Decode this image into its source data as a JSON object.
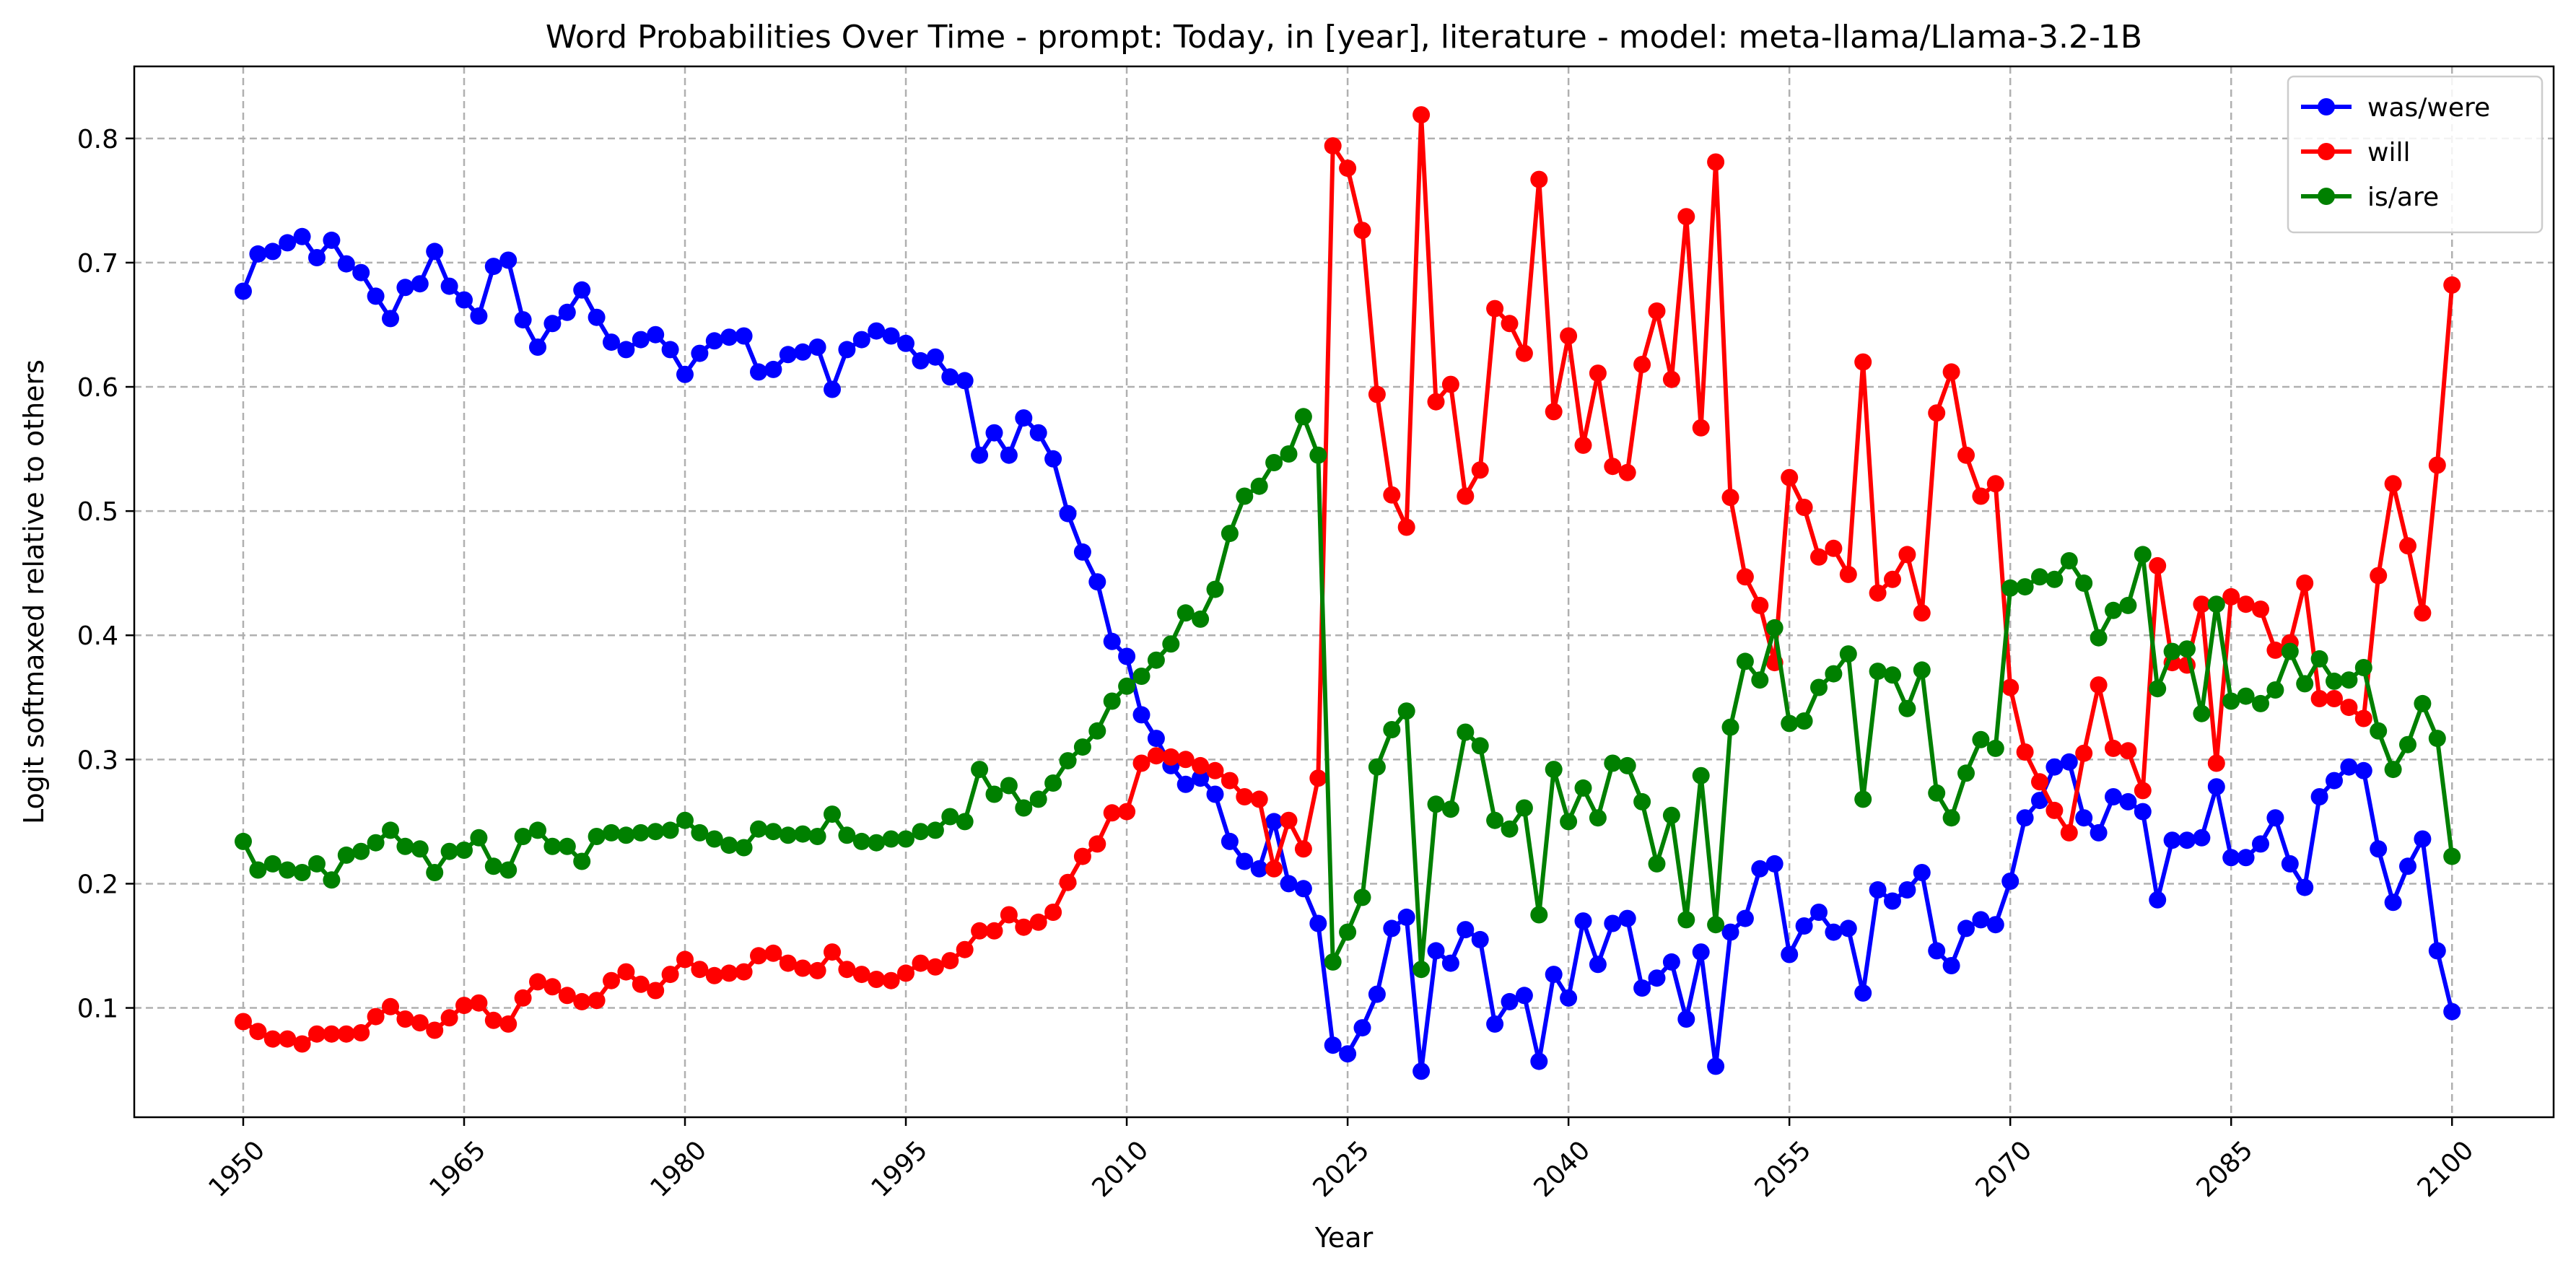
{
  "chart_data": {
    "type": "line",
    "title": "Word Probabilities Over Time - prompt: Today, in [year], literature - model: meta-llama/Llama-3.2-1B",
    "xlabel": "Year",
    "ylabel": "Logit softmaxed relative to others",
    "xlim": [
      1942.6,
      2106.9
    ],
    "ylim": [
      0.012,
      0.858
    ],
    "x_ticks": [
      1950,
      1965,
      1980,
      1995,
      2010,
      2025,
      2040,
      2055,
      2070,
      2085,
      2100
    ],
    "y_ticks": [
      0.1,
      0.2,
      0.3,
      0.4,
      0.5,
      0.6,
      0.7,
      0.8
    ],
    "grid": true,
    "legend_position": "top-right",
    "x_start": 1950,
    "x_step": 1,
    "series": [
      {
        "name": "was/were",
        "color": "#0000ff",
        "values": [
          0.677,
          0.707,
          0.709,
          0.716,
          0.721,
          0.704,
          0.718,
          0.699,
          0.692,
          0.673,
          0.655,
          0.68,
          0.683,
          0.709,
          0.681,
          0.67,
          0.657,
          0.697,
          0.702,
          0.654,
          0.632,
          0.651,
          0.66,
          0.678,
          0.656,
          0.636,
          0.63,
          0.638,
          0.642,
          0.63,
          0.61,
          0.627,
          0.637,
          0.64,
          0.641,
          0.612,
          0.614,
          0.626,
          0.628,
          0.632,
          0.598,
          0.63,
          0.638,
          0.645,
          0.641,
          0.635,
          0.621,
          0.624,
          0.608,
          0.605,
          0.545,
          0.563,
          0.545,
          0.575,
          0.563,
          0.542,
          0.498,
          0.467,
          0.443,
          0.395,
          0.383,
          0.336,
          0.317,
          0.295,
          0.28,
          0.285,
          0.272,
          0.234,
          0.218,
          0.212,
          0.25,
          0.2,
          0.196,
          0.168,
          0.07,
          0.063,
          0.084,
          0.111,
          0.164,
          0.173,
          0.049,
          0.146,
          0.136,
          0.163,
          0.155,
          0.087,
          0.105,
          0.11,
          0.057,
          0.127,
          0.108,
          0.17,
          0.135,
          0.168,
          0.172,
          0.116,
          0.124,
          0.137,
          0.091,
          0.145,
          0.053,
          0.161,
          0.172,
          0.212,
          0.216,
          0.143,
          0.166,
          0.177,
          0.161,
          0.164,
          0.112,
          0.195,
          0.186,
          0.195,
          0.209,
          0.146,
          0.134,
          0.164,
          0.171,
          0.167,
          0.202,
          0.253,
          0.267,
          0.294,
          0.298,
          0.253,
          0.241,
          0.27,
          0.266,
          0.258,
          0.187,
          0.235,
          0.235,
          0.237,
          0.278,
          0.221,
          0.221,
          0.232,
          0.253,
          0.216,
          0.197,
          0.27,
          0.283,
          0.294,
          0.291,
          0.228,
          0.185,
          0.214,
          0.236,
          0.146,
          0.097
        ]
      },
      {
        "name": "will",
        "color": "#ff0000",
        "values": [
          0.089,
          0.081,
          0.075,
          0.075,
          0.071,
          0.079,
          0.079,
          0.079,
          0.08,
          0.093,
          0.101,
          0.091,
          0.088,
          0.082,
          0.092,
          0.102,
          0.104,
          0.09,
          0.087,
          0.108,
          0.121,
          0.117,
          0.11,
          0.105,
          0.106,
          0.122,
          0.129,
          0.119,
          0.114,
          0.127,
          0.139,
          0.131,
          0.126,
          0.128,
          0.129,
          0.142,
          0.144,
          0.136,
          0.132,
          0.13,
          0.145,
          0.131,
          0.127,
          0.123,
          0.122,
          0.128,
          0.136,
          0.133,
          0.138,
          0.147,
          0.162,
          0.162,
          0.175,
          0.165,
          0.169,
          0.177,
          0.201,
          0.222,
          0.232,
          0.257,
          0.258,
          0.297,
          0.303,
          0.302,
          0.3,
          0.295,
          0.291,
          0.283,
          0.27,
          0.268,
          0.212,
          0.251,
          0.228,
          0.285,
          0.794,
          0.776,
          0.726,
          0.594,
          0.513,
          0.487,
          0.819,
          0.588,
          0.602,
          0.512,
          0.533,
          0.663,
          0.651,
          0.627,
          0.767,
          0.58,
          0.641,
          0.553,
          0.611,
          0.536,
          0.531,
          0.618,
          0.661,
          0.606,
          0.737,
          0.567,
          0.781,
          0.511,
          0.447,
          0.424,
          0.378,
          0.527,
          0.503,
          0.463,
          0.47,
          0.449,
          0.62,
          0.434,
          0.445,
          0.465,
          0.418,
          0.579,
          0.612,
          0.545,
          0.512,
          0.522,
          0.358,
          0.306,
          0.282,
          0.259,
          0.241,
          0.305,
          0.36,
          0.309,
          0.307,
          0.275,
          0.456,
          0.378,
          0.376,
          0.425,
          0.297,
          0.431,
          0.425,
          0.421,
          0.388,
          0.394,
          0.442,
          0.349,
          0.349,
          0.342,
          0.333,
          0.448,
          0.522,
          0.472,
          0.418,
          0.537,
          0.682
        ]
      },
      {
        "name": "is/are",
        "color": "#008000",
        "values": [
          0.234,
          0.211,
          0.216,
          0.211,
          0.209,
          0.216,
          0.203,
          0.223,
          0.226,
          0.233,
          0.243,
          0.23,
          0.228,
          0.209,
          0.226,
          0.227,
          0.237,
          0.214,
          0.211,
          0.238,
          0.243,
          0.23,
          0.23,
          0.218,
          0.238,
          0.241,
          0.239,
          0.241,
          0.242,
          0.243,
          0.251,
          0.241,
          0.236,
          0.231,
          0.229,
          0.244,
          0.242,
          0.239,
          0.24,
          0.238,
          0.256,
          0.239,
          0.234,
          0.233,
          0.236,
          0.236,
          0.242,
          0.243,
          0.254,
          0.25,
          0.292,
          0.272,
          0.279,
          0.261,
          0.268,
          0.281,
          0.299,
          0.31,
          0.323,
          0.347,
          0.359,
          0.367,
          0.38,
          0.393,
          0.418,
          0.413,
          0.437,
          0.482,
          0.512,
          0.52,
          0.539,
          0.546,
          0.576,
          0.545,
          0.137,
          0.161,
          0.189,
          0.294,
          0.324,
          0.339,
          0.131,
          0.264,
          0.26,
          0.322,
          0.311,
          0.251,
          0.244,
          0.261,
          0.175,
          0.292,
          0.25,
          0.277,
          0.253,
          0.297,
          0.295,
          0.266,
          0.216,
          0.255,
          0.171,
          0.287,
          0.167,
          0.326,
          0.379,
          0.364,
          0.406,
          0.329,
          0.331,
          0.358,
          0.369,
          0.385,
          0.268,
          0.371,
          0.368,
          0.341,
          0.372,
          0.273,
          0.253,
          0.289,
          0.316,
          0.309,
          0.438,
          0.439,
          0.447,
          0.445,
          0.46,
          0.442,
          0.398,
          0.42,
          0.424,
          0.465,
          0.357,
          0.387,
          0.389,
          0.337,
          0.425,
          0.347,
          0.351,
          0.345,
          0.356,
          0.387,
          0.361,
          0.381,
          0.363,
          0.364,
          0.374,
          0.323,
          0.292,
          0.312,
          0.345,
          0.317,
          0.222
        ]
      }
    ]
  }
}
